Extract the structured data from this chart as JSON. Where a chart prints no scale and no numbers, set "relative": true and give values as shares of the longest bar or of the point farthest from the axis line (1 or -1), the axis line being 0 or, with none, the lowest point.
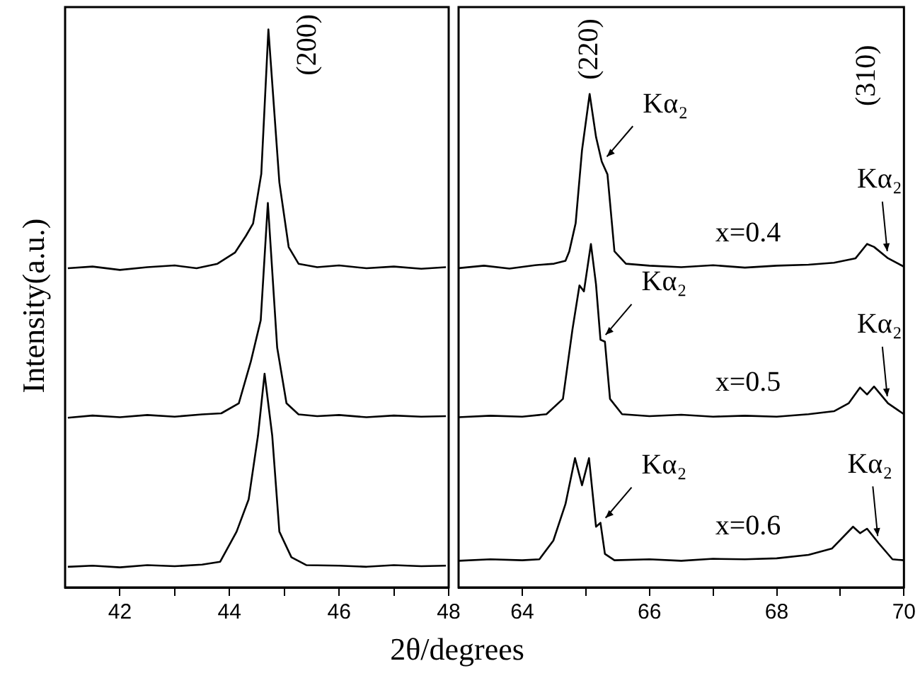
{
  "chart_data": [
    {
      "type": "line",
      "relative": true,
      "xlabel": "2θ/degrees",
      "ylabel": "Intensity(a.u.)",
      "xlim": [
        41,
        48
      ],
      "xticks": [
        42,
        {
          "value": 43,
          "label": null
        },
        44,
        {
          "value": 45,
          "label": null
        },
        46,
        {
          "value": 47,
          "label": null
        },
        48
      ],
      "tick_labels": "x",
      "grid": false,
      "legend": false,
      "marker": "none",
      "line_style": "solid",
      "annotations": [
        "(200)"
      ],
      "series": [
        {
          "color": "#000000",
          "x": [
            41.05,
            41.5,
            42,
            42.5,
            43,
            43.4,
            43.78,
            44.1,
            44.3,
            44.43,
            44.58,
            44.71,
            44.91,
            45.08,
            45.26,
            45.6,
            46,
            46.5,
            47,
            47.5,
            47.95
          ],
          "values": [
            0.572,
            0.575,
            0.569,
            0.574,
            0.577,
            0.572,
            0.58,
            0.6,
            0.63,
            0.652,
            0.741,
            1.0,
            0.726,
            0.61,
            0.58,
            0.574,
            0.577,
            0.572,
            0.575,
            0.571,
            0.574
          ]
        },
        {
          "color": "#000000",
          "x": [
            41.05,
            41.5,
            42,
            42.5,
            43,
            43.5,
            43.85,
            44.17,
            44.39,
            44.57,
            44.7,
            44.87,
            45.04,
            45.26,
            45.6,
            46,
            46.5,
            47,
            47.5,
            47.95
          ],
          "values": [
            0.304,
            0.308,
            0.305,
            0.309,
            0.306,
            0.31,
            0.312,
            0.33,
            0.405,
            0.479,
            0.689,
            0.43,
            0.33,
            0.31,
            0.307,
            0.309,
            0.305,
            0.308,
            0.306,
            0.307
          ]
        },
        {
          "color": "#000000",
          "x": [
            41.05,
            41.5,
            42,
            42.5,
            43,
            43.5,
            43.83,
            44.13,
            44.35,
            44.52,
            44.64,
            44.78,
            44.91,
            45.13,
            45.4,
            46,
            46.5,
            47,
            47.5,
            47.95
          ],
          "values": [
            0.037,
            0.039,
            0.036,
            0.04,
            0.038,
            0.041,
            0.046,
            0.1,
            0.158,
            0.272,
            0.383,
            0.272,
            0.1,
            0.054,
            0.04,
            0.039,
            0.037,
            0.04,
            0.038,
            0.039
          ]
        }
      ]
    },
    {
      "type": "line",
      "relative": true,
      "xlim": [
        63,
        70
      ],
      "xticks": [
        64,
        {
          "value": 65,
          "label": null
        },
        66,
        {
          "value": 67,
          "label": null
        },
        68,
        {
          "value": 69,
          "label": null
        },
        70
      ],
      "tick_labels": "x",
      "grid": false,
      "legend": false,
      "marker": "none",
      "line_style": "solid",
      "annotations": [
        "(220)",
        "(310)",
        {
          "text": "Kα₂",
          "x": 65.25,
          "y": 0.863
        },
        {
          "text": "Kα₂",
          "x": 69.75,
          "y": 0.667
        },
        {
          "text": "Kα₂",
          "x": 65.23,
          "y": 0.502
        },
        {
          "text": "Kα₂",
          "x": 69.75,
          "y": 0.373
        },
        {
          "text": "Kα₂",
          "x": 65.23,
          "y": 0.131
        },
        {
          "text": "Kα₂",
          "x": 69.6,
          "y": 0.09
        }
      ],
      "series": [
        {
          "name": "x=0.4",
          "color": "#000000",
          "x": [
            63,
            63.4,
            63.8,
            64.2,
            64.5,
            64.68,
            64.74,
            64.84,
            64.94,
            65.06,
            65.16,
            65.25,
            65.34,
            65.45,
            65.63,
            66,
            66.5,
            67,
            67.5,
            68,
            68.5,
            68.9,
            69.24,
            69.42,
            69.53,
            69.75,
            70
          ],
          "values": [
            0.647,
            0.652,
            0.646,
            0.653,
            0.656,
            0.662,
            0.681,
            0.738,
            0.886,
            1.0,
            0.913,
            0.863,
            0.837,
            0.681,
            0.656,
            0.652,
            0.649,
            0.653,
            0.648,
            0.652,
            0.654,
            0.658,
            0.667,
            0.696,
            0.69,
            0.667,
            0.65
          ]
        },
        {
          "name": "x=0.5",
          "color": "#000000",
          "x": [
            63,
            63.5,
            64,
            64.38,
            64.64,
            64.79,
            64.9,
            64.97,
            65.08,
            65.16,
            65.23,
            65.3,
            65.38,
            65.57,
            66,
            66.5,
            67,
            67.5,
            68,
            68.5,
            68.9,
            69.13,
            69.31,
            69.42,
            69.53,
            69.75,
            70
          ],
          "values": [
            0.345,
            0.348,
            0.346,
            0.351,
            0.382,
            0.523,
            0.612,
            0.6,
            0.696,
            0.614,
            0.502,
            0.498,
            0.382,
            0.351,
            0.347,
            0.35,
            0.346,
            0.348,
            0.346,
            0.351,
            0.357,
            0.373,
            0.405,
            0.391,
            0.407,
            0.373,
            0.351
          ]
        },
        {
          "name": "x=0.6",
          "color": "#000000",
          "x": [
            63,
            63.5,
            64,
            64.27,
            64.49,
            64.68,
            64.83,
            64.94,
            65.05,
            65.16,
            65.23,
            65.3,
            65.45,
            66,
            66.5,
            67,
            67.5,
            68,
            68.5,
            68.87,
            69.2,
            69.31,
            69.42,
            69.6,
            69.82,
            70
          ],
          "values": [
            0.054,
            0.057,
            0.055,
            0.057,
            0.095,
            0.169,
            0.262,
            0.207,
            0.262,
            0.123,
            0.131,
            0.068,
            0.055,
            0.057,
            0.054,
            0.058,
            0.057,
            0.059,
            0.066,
            0.079,
            0.123,
            0.11,
            0.119,
            0.09,
            0.057,
            0.055
          ]
        }
      ]
    }
  ]
}
